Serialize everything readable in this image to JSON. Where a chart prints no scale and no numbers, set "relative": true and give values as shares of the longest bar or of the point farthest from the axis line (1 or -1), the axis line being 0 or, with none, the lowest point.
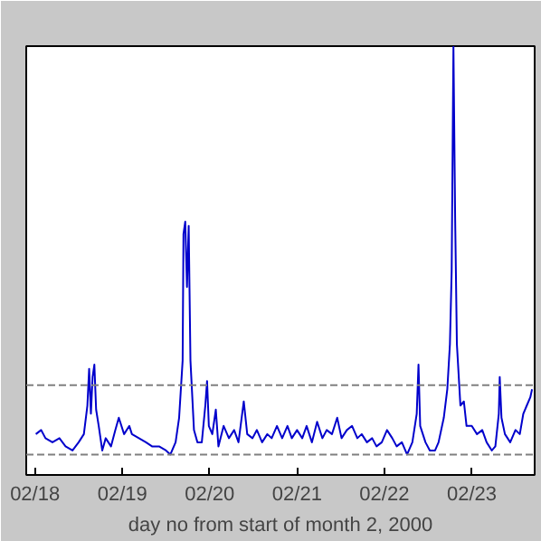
{
  "chart_data": {
    "type": "line",
    "relative": true,
    "xlabel": "day no from start of month 2, 2000",
    "x": [
      "2000-02-18T00:14",
      "2000-02-18T01:41",
      "2000-02-18T02:53",
      "2000-02-18T04:48",
      "2000-02-18T06:43",
      "2000-02-18T08:24",
      "2000-02-18T10:19",
      "2000-02-18T12:00",
      "2000-02-18T13:26",
      "2000-02-18T14:24",
      "2000-02-18T14:53",
      "2000-02-18T15:22",
      "2000-02-18T15:50",
      "2000-02-18T16:19",
      "2000-02-18T16:48",
      "2000-02-18T17:31",
      "2000-02-18T18:29",
      "2000-02-18T19:26",
      "2000-02-18T20:53",
      "2000-02-18T22:05",
      "2000-02-18T23:02",
      "2000-02-19T00:29",
      "2000-02-19T01:55",
      "2000-02-19T02:38",
      "2000-02-19T04:34",
      "2000-02-19T06:29",
      "2000-02-19T08:10",
      "2000-02-19T10:05",
      "2000-02-19T12:00",
      "2000-02-19T13:12",
      "2000-02-19T14:38",
      "2000-02-19T15:36",
      "2000-02-19T16:34",
      "2000-02-19T16:48",
      "2000-02-19T17:17",
      "2000-02-19T17:46",
      "2000-02-19T18:14",
      "2000-02-19T18:43",
      "2000-02-19T19:41",
      "2000-02-19T20:38",
      "2000-02-19T21:50",
      "2000-02-19T22:48",
      "2000-02-19T23:17",
      "2000-02-19T23:46",
      "2000-02-20T00:43",
      "2000-02-20T01:41",
      "2000-02-20T02:24",
      "2000-02-20T03:50",
      "2000-02-20T05:17",
      "2000-02-20T06:43",
      "2000-02-20T07:55",
      "2000-02-20T09:22",
      "2000-02-20T10:19",
      "2000-02-20T11:46",
      "2000-02-20T12:58",
      "2000-02-20T14:24",
      "2000-02-20T15:50",
      "2000-02-20T17:02",
      "2000-02-20T18:29",
      "2000-02-20T19:55",
      "2000-02-20T21:22",
      "2000-02-20T22:34",
      "2000-02-21T00:00",
      "2000-02-21T01:26",
      "2000-02-21T02:38",
      "2000-02-21T04:05",
      "2000-02-21T05:31",
      "2000-02-21T06:58",
      "2000-02-21T08:10",
      "2000-02-21T09:36",
      "2000-02-21T11:02",
      "2000-02-21T12:14",
      "2000-02-21T13:41",
      "2000-02-21T15:07",
      "2000-02-21T16:34",
      "2000-02-21T17:46",
      "2000-02-21T19:12",
      "2000-02-21T20:38",
      "2000-02-21T21:50",
      "2000-02-21T23:17",
      "2000-02-22T00:43",
      "2000-02-22T02:10",
      "2000-02-22T03:22",
      "2000-02-22T04:48",
      "2000-02-22T06:14",
      "2000-02-22T07:41",
      "2000-02-22T08:53",
      "2000-02-22T09:22",
      "2000-02-22T09:50",
      "2000-02-22T11:17",
      "2000-02-22T12:29",
      "2000-02-22T13:55",
      "2000-02-22T14:53",
      "2000-02-22T16:19",
      "2000-02-22T17:17",
      "2000-02-22T18:00",
      "2000-02-22T18:29",
      "2000-02-22T18:58",
      "2000-02-22T19:26",
      "2000-02-22T19:55",
      "2000-02-22T20:53",
      "2000-02-22T21:50",
      "2000-02-22T22:34",
      "2000-02-23T00:00",
      "2000-02-23T01:26",
      "2000-02-23T02:53",
      "2000-02-23T04:05",
      "2000-02-23T05:31",
      "2000-02-23T06:29",
      "2000-02-23T07:26",
      "2000-02-23T07:41",
      "2000-02-23T08:10",
      "2000-02-23T09:07",
      "2000-02-23T10:34",
      "2000-02-23T12:00",
      "2000-02-23T13:12",
      "2000-02-23T14:10",
      "2000-02-23T15:07",
      "2000-02-23T16:05",
      "2000-02-23T16:34"
    ],
    "series": [
      {
        "color": "#0000cc",
        "values": [
          0.05,
          0.06,
          0.04,
          0.03,
          0.04,
          0.02,
          0.01,
          0.03,
          0.05,
          0.12,
          0.21,
          0.1,
          0.19,
          0.22,
          0.11,
          0.07,
          0.01,
          0.04,
          0.02,
          0.06,
          0.09,
          0.05,
          0.07,
          0.05,
          0.04,
          0.03,
          0.02,
          0.02,
          0.01,
          0,
          0.03,
          0.09,
          0.23,
          0.54,
          0.57,
          0.41,
          0.56,
          0.23,
          0.06,
          0.03,
          0.03,
          0.12,
          0.18,
          0.07,
          0.05,
          0.11,
          0.02,
          0.07,
          0.04,
          0.06,
          0.03,
          0.13,
          0.05,
          0.04,
          0.06,
          0.03,
          0.05,
          0.04,
          0.07,
          0.04,
          0.07,
          0.04,
          0.06,
          0.04,
          0.07,
          0.03,
          0.08,
          0.04,
          0.06,
          0.05,
          0.09,
          0.04,
          0.06,
          0.07,
          0.04,
          0.05,
          0.03,
          0.04,
          0.02,
          0.03,
          0.06,
          0.04,
          0.02,
          0.03,
          0,
          0.03,
          0.1,
          0.22,
          0.07,
          0.03,
          0.01,
          0.01,
          0.03,
          0.09,
          0.16,
          0.27,
          0.45,
          1,
          0.58,
          0.27,
          0.12,
          0.13,
          0.07,
          0.07,
          0.05,
          0.06,
          0.03,
          0.01,
          0.02,
          0.1,
          0.19,
          0.09,
          0.05,
          0.03,
          0.06,
          0.05,
          0.1,
          0.12,
          0.14,
          0.16
        ]
      }
    ],
    "xlim": [
      "2000-02-17T21:36",
      "2000-02-23T17:17"
    ],
    "xticks": [
      {
        "value": "2000-02-18",
        "label": "02/18"
      },
      {
        "value": "2000-02-19",
        "label": "02/19"
      },
      {
        "value": "2000-02-20",
        "label": "02/20"
      },
      {
        "value": "2000-02-21",
        "label": "02/21"
      },
      {
        "value": "2000-02-22",
        "label": "02/22"
      },
      {
        "value": "2000-02-23",
        "label": "02/23"
      }
    ],
    "ref_lines": [
      {
        "axis": "y",
        "value": 0.17,
        "color": "#808080",
        "line_style": "dashed"
      },
      {
        "axis": "y",
        "value": 0,
        "color": "#808080",
        "line_style": "dashed"
      }
    ],
    "grid": false,
    "tick_labels": "x",
    "line_style": "solid"
  }
}
